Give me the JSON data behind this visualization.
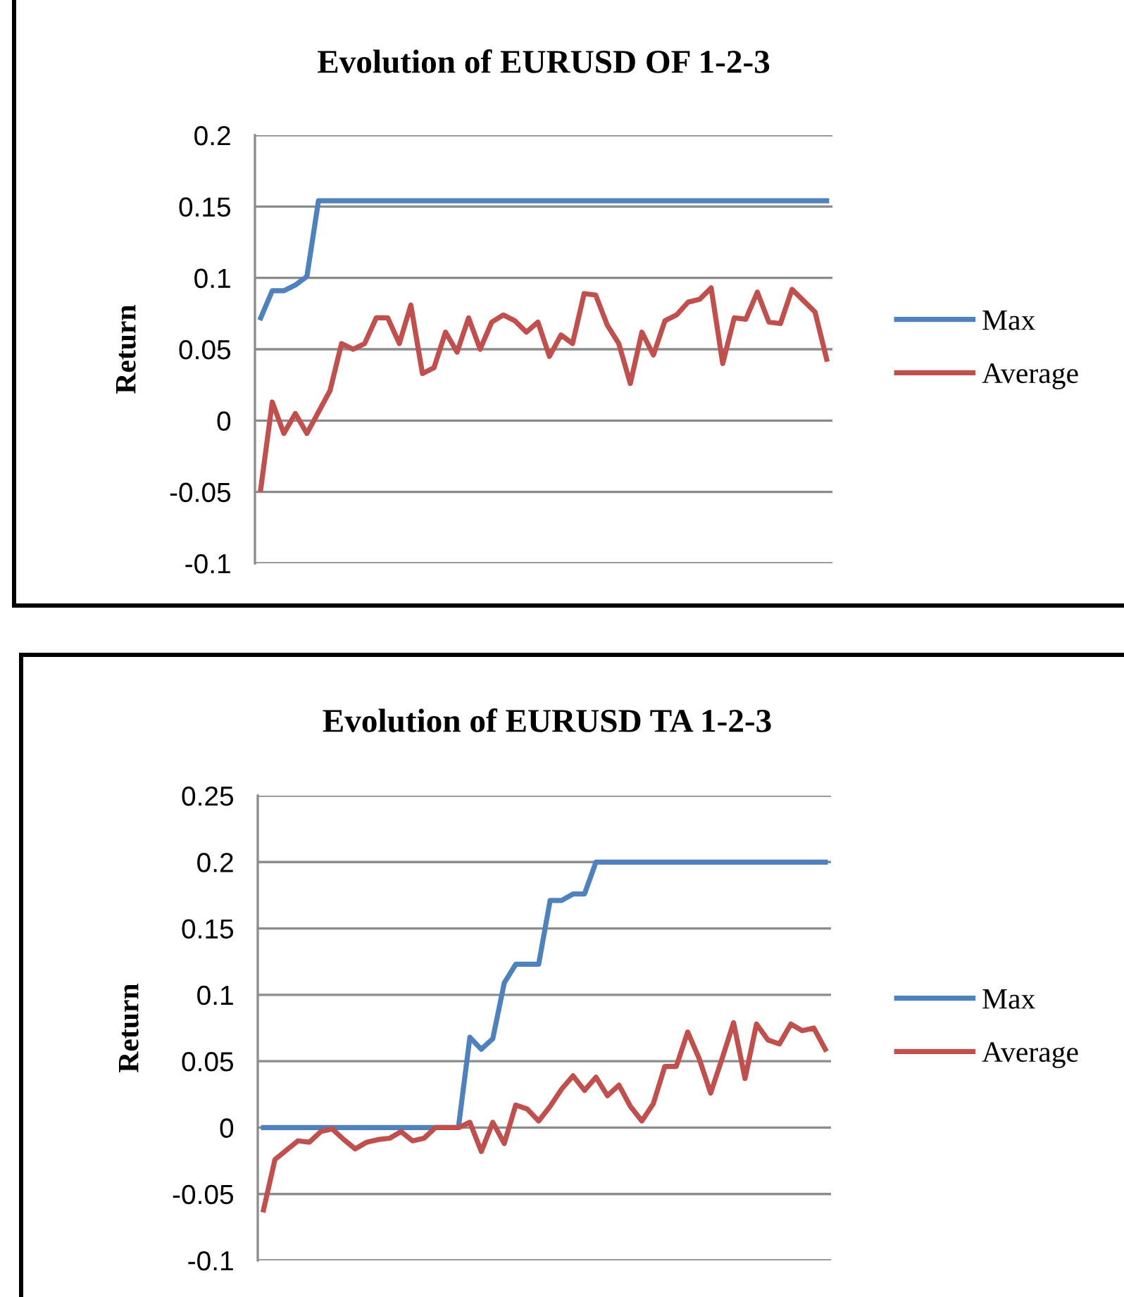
{
  "chart_data": [
    {
      "type": "line",
      "title": "Evolution of EURUSD OF 1-2-3",
      "ylabel": "Return",
      "categories": [
        null,
        null,
        null,
        null,
        null,
        null,
        null,
        null,
        null,
        null,
        null,
        null,
        null,
        null,
        null,
        null,
        null,
        null,
        null,
        null,
        null,
        null,
        null,
        null,
        null,
        null,
        null,
        null,
        null,
        null,
        null,
        null,
        null,
        null,
        null,
        null,
        null,
        null,
        null,
        null,
        null,
        null,
        null,
        null,
        null,
        null,
        null,
        null,
        null,
        null
      ],
      "series": [
        {
          "name": "Max",
          "color": "#4f81bd",
          "values": [
            0.072,
            0.091,
            0.091,
            0.095,
            0.101,
            0.154,
            0.154,
            0.154,
            0.154,
            0.154,
            0.154,
            0.154,
            0.154,
            0.154,
            0.154,
            0.154,
            0.154,
            0.154,
            0.154,
            0.154,
            0.154,
            0.154,
            0.154,
            0.154,
            0.154,
            0.154,
            0.154,
            0.154,
            0.154,
            0.154,
            0.154,
            0.154,
            0.154,
            0.154,
            0.154,
            0.154,
            0.154,
            0.154,
            0.154,
            0.154,
            0.154,
            0.154,
            0.154,
            0.154,
            0.154,
            0.154,
            0.154,
            0.154,
            0.154,
            0.154
          ]
        },
        {
          "name": "Average",
          "color": "#c0504d",
          "values": [
            -0.048,
            0.013,
            -0.009,
            0.005,
            -0.009,
            0.006,
            0.021,
            0.054,
            0.05,
            0.054,
            0.072,
            0.072,
            0.054,
            0.081,
            0.033,
            0.037,
            0.062,
            0.048,
            0.072,
            0.05,
            0.069,
            0.074,
            0.07,
            0.062,
            0.069,
            0.045,
            0.06,
            0.054,
            0.089,
            0.088,
            0.067,
            0.054,
            0.026,
            0.062,
            0.046,
            0.07,
            0.074,
            0.083,
            0.085,
            0.093,
            0.04,
            0.072,
            0.071,
            0.09,
            0.069,
            0.068,
            0.092,
            0.084,
            0.076,
            0.043
          ]
        }
      ],
      "ylim": [
        -0.1,
        0.2
      ],
      "yticks": [
        -0.1,
        -0.05,
        0,
        0.05,
        0.1,
        0.15,
        0.2
      ],
      "grid": "y",
      "legend": "right"
    },
    {
      "type": "line",
      "title": "Evolution of EURUSD TA 1-2-3",
      "ylabel": "Return",
      "categories": [
        null,
        null,
        null,
        null,
        null,
        null,
        null,
        null,
        null,
        null,
        null,
        null,
        null,
        null,
        null,
        null,
        null,
        null,
        null,
        null,
        null,
        null,
        null,
        null,
        null,
        null,
        null,
        null,
        null,
        null,
        null,
        null,
        null,
        null,
        null,
        null,
        null,
        null,
        null,
        null,
        null,
        null,
        null,
        null,
        null,
        null,
        null,
        null,
        null,
        null
      ],
      "series": [
        {
          "name": "Max",
          "color": "#4f81bd",
          "values": [
            0,
            0,
            0,
            0,
            0,
            0,
            0,
            0,
            0,
            0,
            0,
            0,
            0,
            0,
            0,
            0,
            0,
            0,
            0.068,
            0.059,
            0.067,
            0.109,
            0.123,
            0.123,
            0.123,
            0.171,
            0.171,
            0.176,
            0.176,
            0.2,
            0.2,
            0.2,
            0.2,
            0.2,
            0.2,
            0.2,
            0.2,
            0.2,
            0.2,
            0.2,
            0.2,
            0.2,
            0.2,
            0.2,
            0.2,
            0.2,
            0.2,
            0.2,
            0.2,
            0.2
          ]
        },
        {
          "name": "Average",
          "color": "#c0504d",
          "values": [
            -0.062,
            -0.024,
            -0.017,
            -0.01,
            -0.011,
            -0.003,
            -0.001,
            -0.009,
            -0.016,
            -0.011,
            -0.009,
            -0.008,
            -0.003,
            -0.01,
            -0.008,
            0,
            0,
            0,
            0.004,
            -0.018,
            0.004,
            -0.012,
            0.017,
            0.014,
            0.005,
            0.016,
            0.029,
            0.039,
            0.028,
            0.038,
            0.024,
            0.032,
            0.016,
            0.005,
            0.018,
            0.046,
            0.046,
            0.072,
            0.052,
            0.026,
            0.052,
            0.079,
            0.037,
            0.078,
            0.066,
            0.063,
            0.078,
            0.073,
            0.075,
            0.059
          ]
        }
      ],
      "ylim": [
        -0.1,
        0.25
      ],
      "yticks": [
        -0.1,
        -0.05,
        0,
        0.05,
        0.1,
        0.15,
        0.2,
        0.25
      ],
      "grid": "y",
      "legend": "right"
    }
  ]
}
